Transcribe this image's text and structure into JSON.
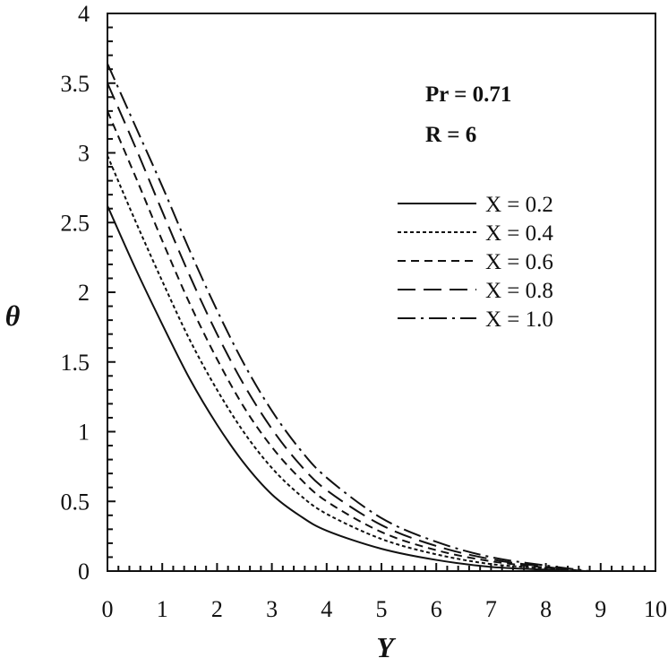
{
  "chart_data": {
    "type": "line",
    "title": "",
    "xlabel": "Y",
    "ylabel": "θ",
    "xlim": [
      0,
      10
    ],
    "ylim": [
      0,
      4
    ],
    "x_ticks": [
      "0",
      "1",
      "2",
      "3",
      "4",
      "5",
      "6",
      "7",
      "8",
      "9",
      "10"
    ],
    "y_ticks": [
      "0",
      "0.5",
      "1",
      "1.5",
      "2",
      "2.5",
      "3",
      "3.5",
      "4"
    ],
    "annotations": [
      "Pr = 0.71",
      "R = 6"
    ],
    "legend_position": "right",
    "series": [
      {
        "name": "X = 0.2",
        "dash": "solid",
        "x": [
          0,
          0.5,
          1,
          1.5,
          2,
          2.5,
          3,
          3.5,
          4,
          5,
          6,
          7,
          8,
          8.5
        ],
        "y": [
          2.62,
          2.18,
          1.77,
          1.38,
          1.05,
          0.77,
          0.55,
          0.4,
          0.29,
          0.16,
          0.08,
          0.03,
          0.01,
          0.0
        ]
      },
      {
        "name": "X = 0.4",
        "dash": "dotted",
        "x": [
          0,
          0.5,
          1,
          1.5,
          2,
          2.5,
          3,
          3.5,
          4,
          5,
          6,
          7,
          8,
          8.5
        ],
        "y": [
          2.98,
          2.52,
          2.08,
          1.66,
          1.3,
          0.99,
          0.74,
          0.55,
          0.41,
          0.23,
          0.12,
          0.05,
          0.02,
          0.0
        ]
      },
      {
        "name": "X = 0.6",
        "dash": "short-dash",
        "x": [
          0,
          0.5,
          1,
          1.5,
          2,
          2.5,
          3,
          3.5,
          4,
          5,
          6,
          7,
          8,
          8.6
        ],
        "y": [
          3.3,
          2.84,
          2.37,
          1.92,
          1.52,
          1.17,
          0.89,
          0.67,
          0.5,
          0.28,
          0.15,
          0.07,
          0.025,
          0.0
        ]
      },
      {
        "name": "X = 0.8",
        "dash": "long-dash",
        "x": [
          0,
          0.5,
          1,
          1.5,
          2,
          2.5,
          3,
          3.5,
          4,
          5,
          6,
          7,
          8,
          8.7
        ],
        "y": [
          3.5,
          3.05,
          2.58,
          2.12,
          1.7,
          1.33,
          1.02,
          0.77,
          0.58,
          0.33,
          0.18,
          0.085,
          0.03,
          0.0
        ]
      },
      {
        "name": "X = 1.0",
        "dash": "dash-dot",
        "x": [
          0,
          0.5,
          1,
          1.5,
          2,
          2.5,
          3,
          3.5,
          4,
          5,
          6,
          7,
          8,
          8.8
        ],
        "y": [
          3.64,
          3.2,
          2.76,
          2.3,
          1.87,
          1.48,
          1.15,
          0.88,
          0.67,
          0.38,
          0.21,
          0.1,
          0.04,
          0.0
        ]
      }
    ]
  }
}
